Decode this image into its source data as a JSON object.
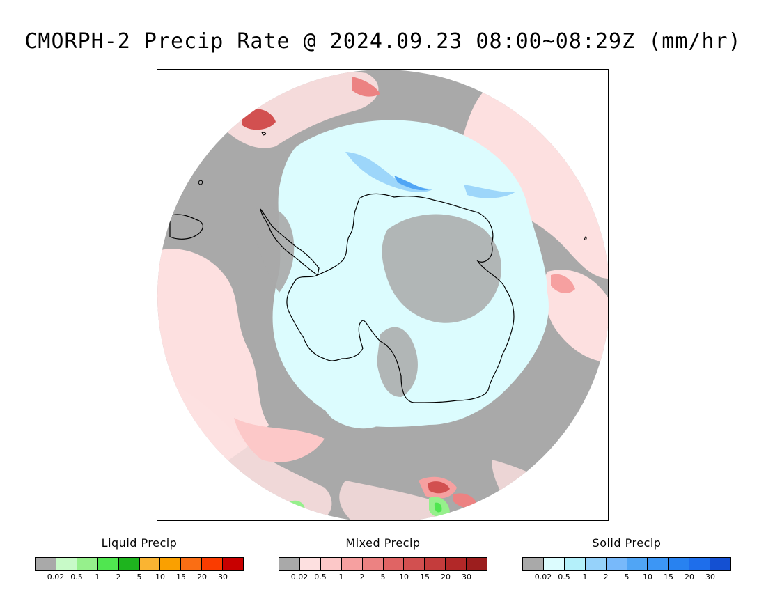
{
  "title": "CMORPH-2 Precip Rate @ 2024.09.23 08:00~08:29Z (mm/hr)",
  "colors": {
    "no_precip": "#a9a9a9",
    "light_pink": "#fde0e0",
    "light_cyan": "#dcfcfe",
    "coast": "#000000"
  },
  "legends": [
    {
      "title": "Liquid Precip",
      "colors": [
        "#a9a9a9",
        "#c8fac8",
        "#96f08c",
        "#50e650",
        "#1eb41e",
        "#fab432",
        "#faa000",
        "#fa6e14",
        "#fa3c00",
        "#c80000"
      ],
      "ticks": [
        "0.02",
        "0.5",
        "1",
        "2",
        "5",
        "10",
        "15",
        "20",
        "30"
      ]
    },
    {
      "title": "Mixed Precip",
      "colors": [
        "#a9a9a9",
        "#fde0e0",
        "#fcc8c8",
        "#f6a0a0",
        "#ec8282",
        "#e06464",
        "#d25050",
        "#c43c3c",
        "#b22828",
        "#9c1e1e"
      ],
      "ticks": [
        "0.02",
        "0.5",
        "1",
        "2",
        "5",
        "10",
        "15",
        "20",
        "30"
      ]
    },
    {
      "title": "Solid Precip",
      "colors": [
        "#a9a9a9",
        "#dcfcfe",
        "#b4f0fa",
        "#96d2fa",
        "#78b9fa",
        "#50a5f5",
        "#3c96f5",
        "#2882f0",
        "#1e6eeb",
        "#1450d2"
      ],
      "ticks": [
        "0.02",
        "0.5",
        "1",
        "2",
        "5",
        "10",
        "15",
        "20",
        "30"
      ]
    }
  ]
}
